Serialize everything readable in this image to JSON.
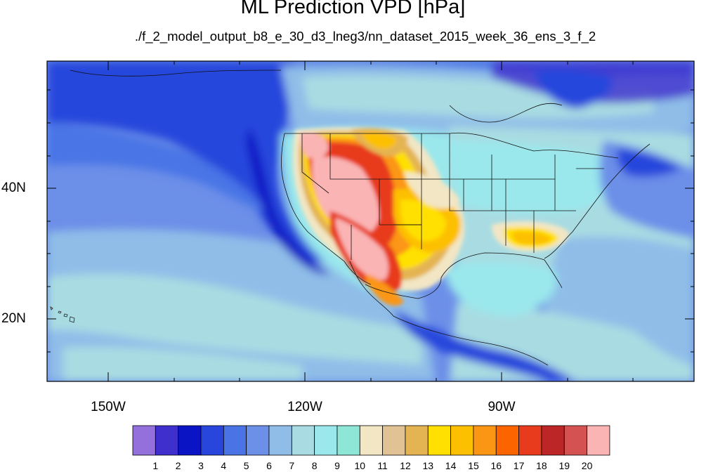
{
  "title": "ML Prediction VPD [hPa]",
  "subtitle": "./f_2_model_output_b8_e_30_d3_lneg3/nn_dataset_2015_week_36_ens_3_f_2",
  "lat_labels": [
    "40N",
    "20N"
  ],
  "lon_labels": [
    "150W",
    "120W",
    "90W"
  ],
  "colorbar": {
    "labels": [
      "1",
      "2",
      "3",
      "4",
      "5",
      "6",
      "7",
      "8",
      "9",
      "10",
      "11",
      "12",
      "13",
      "14",
      "15",
      "16",
      "17",
      "18",
      "19",
      "20"
    ],
    "colors": [
      "#9370db",
      "#3f2fcc",
      "#0a14c4",
      "#2846dc",
      "#4a74e6",
      "#6c8fe8",
      "#8fbde8",
      "#a9dce2",
      "#9ae8ec",
      "#8ee6d6",
      "#f2e6c4",
      "#e0c294",
      "#e4b452",
      "#ffe000",
      "#fdc000",
      "#fb9614",
      "#fc6400",
      "#e83a1c",
      "#bc2626",
      "#d45252",
      "#fab4b4"
    ]
  },
  "map": {
    "projection": "cylindrical-equidistant",
    "lon_range": [
      -160,
      -62
    ],
    "lat_range": [
      10,
      59
    ],
    "variable": "vapor pressure deficit",
    "units": "hPa",
    "boundaries": [
      "coastlines",
      "us-states",
      "national-borders"
    ]
  }
}
